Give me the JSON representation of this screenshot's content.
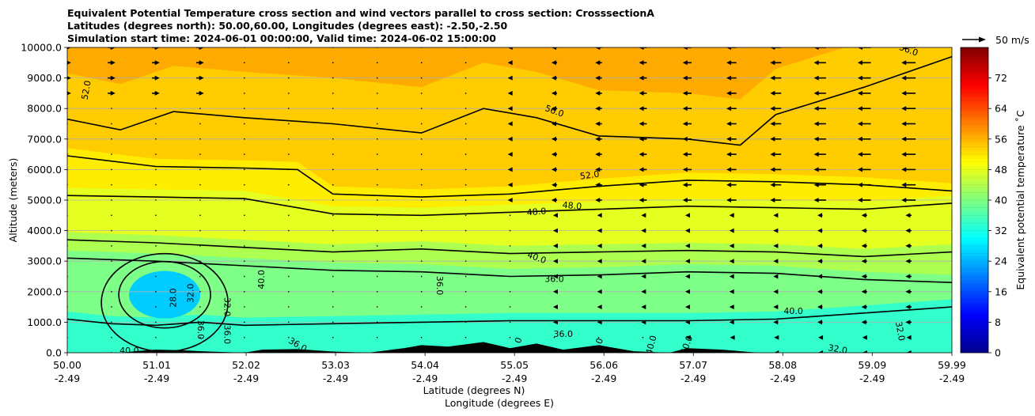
{
  "title_lines": [
    "Equivalent Potential Temperature cross section and wind vectors parallel to cross section: CrosssectionA",
    "Latitudes (degrees north): 50.00,60.00, Longitudes (degrees east): -2.50,-2.50",
    "Simulation start time: 2024-06-01 00:00:00, Valid time: 2024-06-02 15:00:00"
  ],
  "chart_data": {
    "type": "heatmap",
    "xlabel": "Latitude (degrees N)",
    "xlabel2": "Longitude (degrees E)",
    "ylabel": "Altitude (meters)",
    "xlim": [
      50.0,
      59.99
    ],
    "ylim": [
      0,
      10000
    ],
    "x_ticks": [
      {
        "lat": "50.00",
        "lon": "-2.49",
        "value": 50.0
      },
      {
        "lat": "51.01",
        "lon": "-2.49",
        "value": 51.01
      },
      {
        "lat": "52.02",
        "lon": "-2.49",
        "value": 52.02
      },
      {
        "lat": "53.03",
        "lon": "-2.49",
        "value": 53.03
      },
      {
        "lat": "54.04",
        "lon": "-2.49",
        "value": 54.04
      },
      {
        "lat": "55.05",
        "lon": "-2.49",
        "value": 55.05
      },
      {
        "lat": "56.06",
        "lon": "-2.49",
        "value": 56.06
      },
      {
        "lat": "57.07",
        "lon": "-2.49",
        "value": 57.07
      },
      {
        "lat": "58.08",
        "lon": "-2.49",
        "value": 58.08
      },
      {
        "lat": "59.09",
        "lon": "-2.49",
        "value": 59.09
      },
      {
        "lat": "59.99",
        "lon": "-2.49",
        "value": 59.99
      }
    ],
    "y_ticks": [
      {
        "label": "0.0",
        "value": 0
      },
      {
        "label": "1000.0",
        "value": 1000
      },
      {
        "label": "2000.0",
        "value": 2000
      },
      {
        "label": "3000.0",
        "value": 3000
      },
      {
        "label": "4000.0",
        "value": 4000
      },
      {
        "label": "5000.0",
        "value": 5000
      },
      {
        "label": "6000.0",
        "value": 6000
      },
      {
        "label": "7000.0",
        "value": 7000
      },
      {
        "label": "8000.0",
        "value": 8000
      },
      {
        "label": "9000.0",
        "value": 9000
      },
      {
        "label": "10000.0",
        "value": 10000
      }
    ],
    "grid": "horizontal",
    "colorbar": {
      "label": "Equivalent potential temperature ˚C",
      "range": [
        0,
        80
      ],
      "ticks": [
        "0",
        "8",
        "16",
        "24",
        "32",
        "40",
        "48",
        "56",
        "64",
        "72"
      ],
      "tick_values": [
        0,
        8,
        16,
        24,
        32,
        40,
        48,
        56,
        64,
        72
      ],
      "colors": [
        "#00008f",
        "#0000ff",
        "#0080ff",
        "#00ffff",
        "#80ff80",
        "#ffff00",
        "#ff8000",
        "#ff0000",
        "#800000"
      ]
    },
    "quiver_key": {
      "label": "50 m/s",
      "value": 50
    },
    "fill_bands": [
      {
        "theta": 32,
        "color": "#33ffcc"
      },
      {
        "theta": 38,
        "color": "#7dff88"
      },
      {
        "theta": 42,
        "color": "#adff50"
      },
      {
        "theta": 47,
        "color": "#e4ff20"
      },
      {
        "theta": 51,
        "color": "#ffed00"
      },
      {
        "theta": 55,
        "color": "#ffcc00"
      },
      {
        "theta": 58,
        "color": "#ffaa00"
      }
    ],
    "cold_core": {
      "lat": 51.1,
      "alt": 1900,
      "theta": 26,
      "color": "#00ccff"
    },
    "contours": [
      {
        "level": 40.0,
        "label": "40.0",
        "points": [
          [
            50.0,
            1100
          ],
          [
            50.5,
            950
          ],
          [
            51.0,
            900
          ],
          [
            51.5,
            1000
          ],
          [
            52.0,
            900
          ],
          [
            53.0,
            950
          ],
          [
            54.0,
            1000
          ],
          [
            55.0,
            1050
          ],
          [
            56.0,
            1050
          ],
          [
            57.0,
            1050
          ],
          [
            58.0,
            1100
          ],
          [
            59.0,
            1300
          ],
          [
            59.99,
            1500
          ]
        ]
      },
      {
        "level": 36.0,
        "label": "36.0",
        "points": [
          [
            50.0,
            3100
          ],
          [
            51.0,
            3000
          ],
          [
            52.0,
            2850
          ],
          [
            53.0,
            2700
          ],
          [
            54.0,
            2650
          ],
          [
            55.0,
            2500
          ],
          [
            56.0,
            2550
          ],
          [
            57.0,
            2650
          ],
          [
            58.0,
            2600
          ],
          [
            59.0,
            2400
          ],
          [
            59.99,
            2300
          ]
        ]
      },
      {
        "level": 40.0,
        "label": "40.0",
        "points": [
          [
            50.0,
            3700
          ],
          [
            51.0,
            3600
          ],
          [
            52.0,
            3450
          ],
          [
            53.0,
            3300
          ],
          [
            54.0,
            3400
          ],
          [
            55.0,
            3250
          ],
          [
            56.0,
            3300
          ],
          [
            57.0,
            3350
          ],
          [
            58.0,
            3300
          ],
          [
            59.0,
            3150
          ],
          [
            59.99,
            3300
          ]
        ]
      },
      {
        "level": 48.0,
        "label": "48.0",
        "points": [
          [
            50.0,
            5150
          ],
          [
            51.0,
            5100
          ],
          [
            52.0,
            5050
          ],
          [
            53.0,
            4550
          ],
          [
            54.0,
            4500
          ],
          [
            55.0,
            4600
          ],
          [
            56.0,
            4700
          ],
          [
            57.0,
            4800
          ],
          [
            58.0,
            4750
          ],
          [
            59.0,
            4700
          ],
          [
            59.99,
            4900
          ]
        ]
      },
      {
        "level": 52.0,
        "label": "52.0",
        "points": [
          [
            50.0,
            6450
          ],
          [
            51.0,
            6100
          ],
          [
            52.0,
            6050
          ],
          [
            52.6,
            6000
          ],
          [
            53.0,
            5200
          ],
          [
            54.0,
            5100
          ],
          [
            55.0,
            5200
          ],
          [
            56.0,
            5450
          ],
          [
            57.0,
            5650
          ],
          [
            58.0,
            5600
          ],
          [
            59.0,
            5500
          ],
          [
            59.99,
            5300
          ]
        ]
      },
      {
        "level": 56.0,
        "label": "56.0",
        "points": [
          [
            50.0,
            7650
          ],
          [
            50.6,
            7300
          ],
          [
            51.2,
            7900
          ],
          [
            52.0,
            7700
          ],
          [
            53.0,
            7500
          ],
          [
            54.0,
            7200
          ],
          [
            54.7,
            8000
          ],
          [
            55.3,
            7700
          ],
          [
            56.0,
            7100
          ],
          [
            57.0,
            7000
          ],
          [
            57.6,
            6800
          ],
          [
            58.0,
            7800
          ],
          [
            59.0,
            8700
          ],
          [
            59.99,
            9700
          ]
        ]
      }
    ],
    "terrain": [
      [
        50.0,
        0
      ],
      [
        50.6,
        0
      ],
      [
        50.8,
        60
      ],
      [
        51.0,
        100
      ],
      [
        51.3,
        80
      ],
      [
        51.6,
        40
      ],
      [
        52.0,
        0
      ],
      [
        52.2,
        100
      ],
      [
        52.6,
        120
      ],
      [
        53.0,
        40
      ],
      [
        53.4,
        0
      ],
      [
        53.8,
        150
      ],
      [
        54.0,
        250
      ],
      [
        54.3,
        200
      ],
      [
        54.7,
        350
      ],
      [
        55.0,
        150
      ],
      [
        55.3,
        300
      ],
      [
        55.6,
        100
      ],
      [
        56.0,
        250
      ],
      [
        56.4,
        50
      ],
      [
        56.8,
        0
      ],
      [
        57.0,
        150
      ],
      [
        57.4,
        100
      ],
      [
        57.8,
        0
      ],
      [
        59.99,
        0
      ]
    ],
    "contour_labels": [
      {
        "text": "52.0",
        "lat": 50.22,
        "alt": 8600,
        "angle": -80
      },
      {
        "text": "56.0",
        "lat": 55.5,
        "alt": 7900,
        "angle": 20
      },
      {
        "text": "56.0",
        "lat": 59.5,
        "alt": 9900,
        "angle": 20
      },
      {
        "text": "52.0",
        "lat": 55.9,
        "alt": 5800,
        "angle": -8
      },
      {
        "text": "48.0",
        "lat": 55.3,
        "alt": 4600,
        "angle": -5
      },
      {
        "text": "48.0",
        "lat": 55.7,
        "alt": 4800,
        "angle": 5
      },
      {
        "text": "40.0",
        "lat": 55.3,
        "alt": 3100,
        "angle": 20
      },
      {
        "text": "36.0",
        "lat": 55.5,
        "alt": 2400,
        "angle": 0
      },
      {
        "text": "36.0",
        "lat": 54.2,
        "alt": 2200,
        "angle": 90
      },
      {
        "text": "40.0",
        "lat": 52.2,
        "alt": 2400,
        "angle": -90
      },
      {
        "text": "28.0",
        "lat": 51.2,
        "alt": 1800,
        "angle": -90
      },
      {
        "text": "32.0",
        "lat": 51.4,
        "alt": 1950,
        "angle": -90
      },
      {
        "text": "32.0",
        "lat": 51.8,
        "alt": 1500,
        "angle": 90
      },
      {
        "text": "36.0",
        "lat": 51.5,
        "alt": 750,
        "angle": 90
      },
      {
        "text": "36.0",
        "lat": 51.8,
        "alt": 600,
        "angle": 90
      },
      {
        "text": "36.0",
        "lat": 52.6,
        "alt": 250,
        "angle": 30
      },
      {
        "text": "40.0",
        "lat": 50.7,
        "alt": 50,
        "angle": 0
      },
      {
        "text": "36.0",
        "lat": 55.6,
        "alt": 600,
        "angle": 0
      },
      {
        "text": "0",
        "lat": 55.1,
        "alt": 400,
        "angle": -70
      },
      {
        "text": "6.0",
        "lat": 56.0,
        "alt": 250,
        "angle": -70
      },
      {
        "text": "40.0",
        "lat": 56.6,
        "alt": 250,
        "angle": -75
      },
      {
        "text": "40.0",
        "lat": 57.0,
        "alt": 250,
        "angle": -70
      },
      {
        "text": "40.0",
        "lat": 58.2,
        "alt": 1350,
        "angle": 0
      },
      {
        "text": "32.0",
        "lat": 58.7,
        "alt": 100,
        "angle": 10
      },
      {
        "text": "32.0",
        "lat": 59.4,
        "alt": 700,
        "angle": 80
      }
    ]
  }
}
